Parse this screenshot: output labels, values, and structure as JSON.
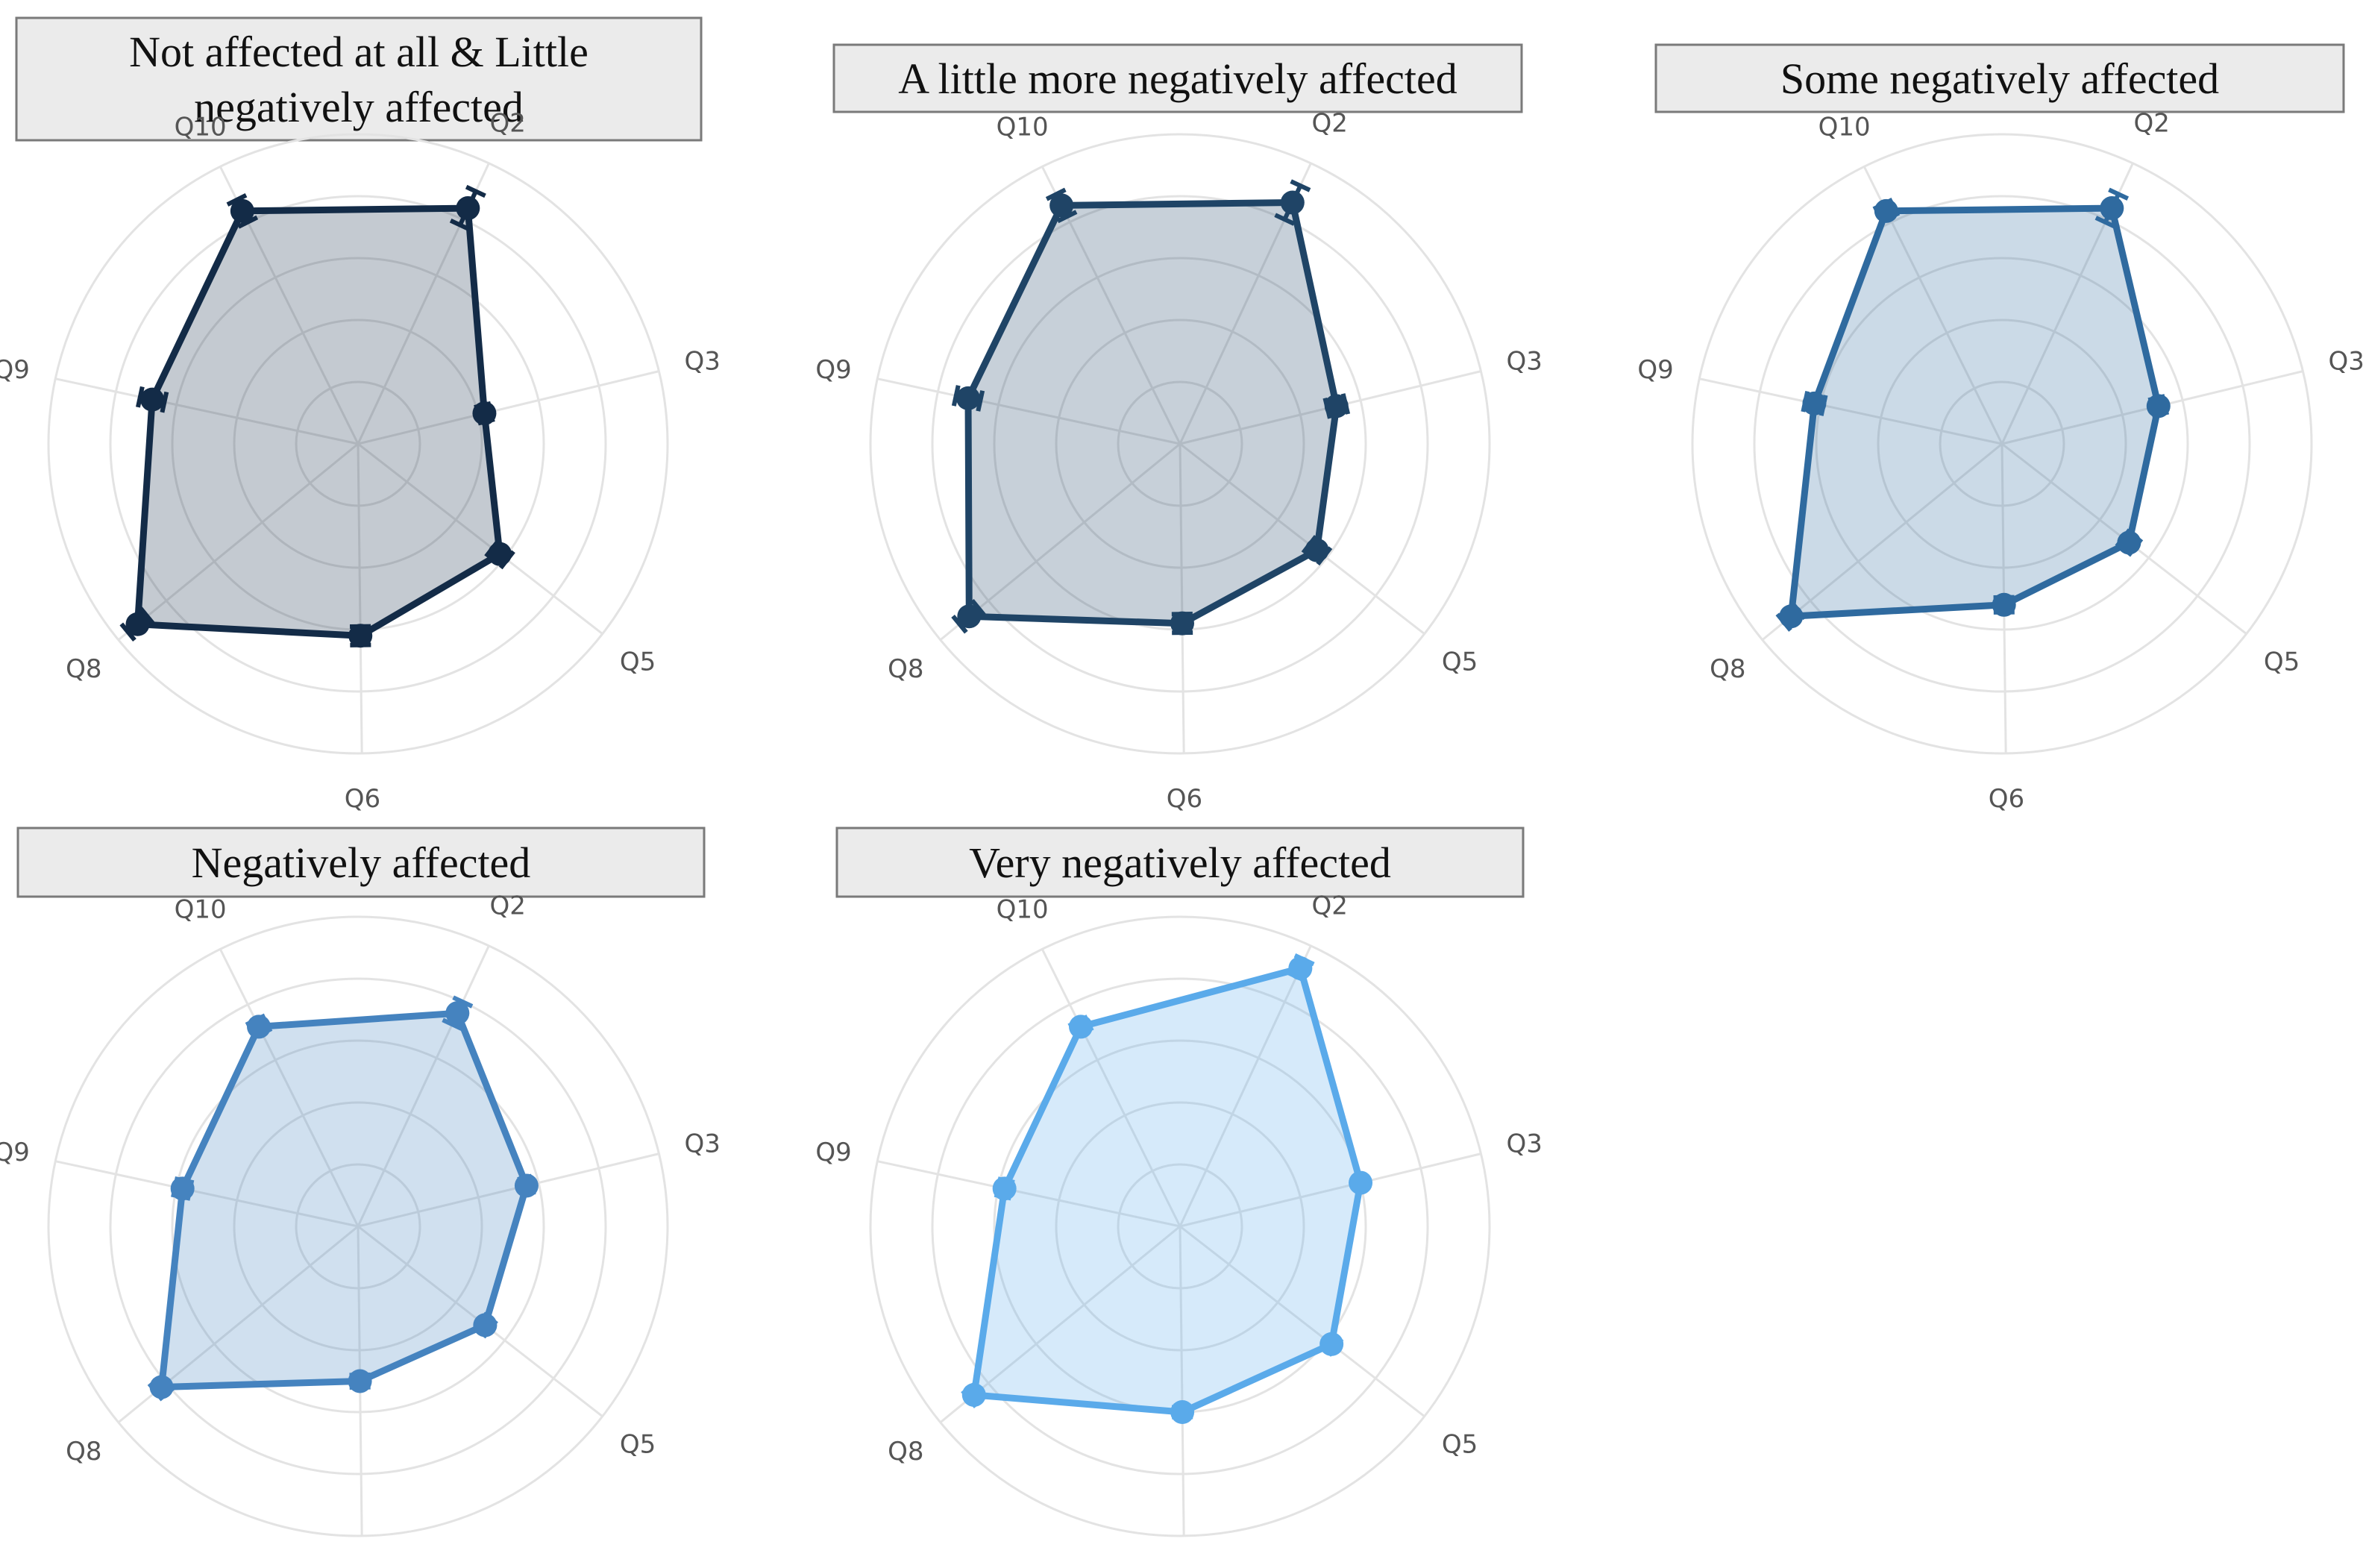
{
  "chart_data": {
    "type": "radar",
    "axes": [
      "Q2",
      "Q3",
      "Q5",
      "Q6",
      "Q8",
      "Q9",
      "Q10"
    ],
    "rlim": [
      0,
      5
    ],
    "grid_rings": [
      1,
      2,
      3,
      4,
      5
    ],
    "panels": [
      {
        "title_lines": [
          "Not affected at all & Little",
          "negatively affected"
        ],
        "color": "#132b47",
        "values": [
          4.2,
          2.1,
          2.9,
          3.1,
          4.6,
          3.4,
          4.2
        ],
        "errors": [
          0.3,
          0.1,
          0.15,
          0.15,
          0.2,
          0.2,
          0.2
        ]
      },
      {
        "title_lines": [
          "A little more negatively affected"
        ],
        "color": "#1f4466",
        "values": [
          4.3,
          2.6,
          2.8,
          2.9,
          4.4,
          3.5,
          4.3
        ],
        "errors": [
          0.3,
          0.15,
          0.15,
          0.15,
          0.2,
          0.2,
          0.2
        ]
      },
      {
        "title_lines": [
          "Some negatively affected"
        ],
        "color": "#2f6a9f",
        "values": [
          4.2,
          2.6,
          2.6,
          2.6,
          4.4,
          3.1,
          4.2
        ],
        "errors": [
          0.25,
          0.1,
          0.12,
          0.12,
          0.15,
          0.15,
          0.12
        ]
      },
      {
        "title_lines": [
          "Negatively affected"
        ],
        "color": "#4583bf",
        "values": [
          3.8,
          2.8,
          2.6,
          2.5,
          4.1,
          2.9,
          3.6
        ],
        "errors": [
          0.2,
          0.08,
          0.1,
          0.1,
          0.12,
          0.12,
          0.12
        ]
      },
      {
        "title_lines": [
          "Very negatively affected"
        ],
        "color": "#5aaaea",
        "values": [
          4.6,
          3.0,
          3.1,
          3.0,
          4.3,
          2.9,
          3.6
        ],
        "errors": [
          0.15,
          0.05,
          0.08,
          0.08,
          0.1,
          0.1,
          0.1
        ]
      }
    ]
  }
}
